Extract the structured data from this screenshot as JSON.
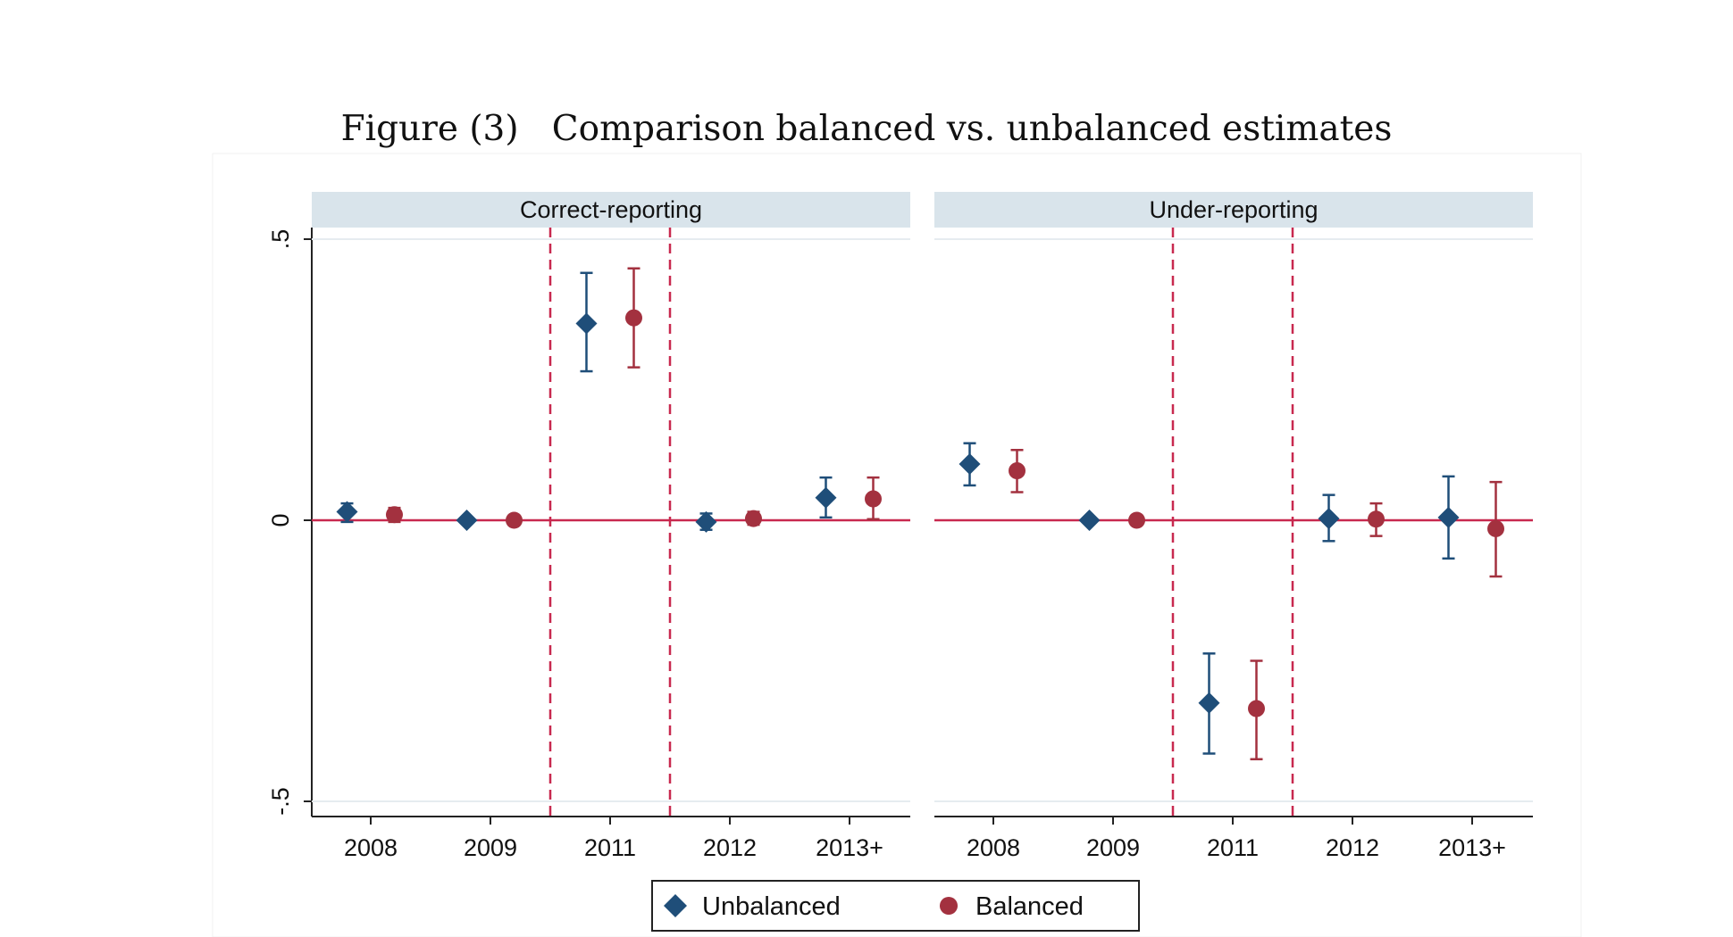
{
  "caption": "Figure (3)   Comparison balanced vs. unbalanced estimates",
  "chart_data": {
    "type": "scatter",
    "subtype": "coefficient plot with confidence intervals, two panels",
    "ylim": [
      -0.5,
      0.5
    ],
    "y_ticks": [
      0.5,
      0,
      -0.5
    ],
    "y_tick_labels": [
      ".5",
      "0",
      "-.5"
    ],
    "grid": "horizontal lines at y ticks",
    "reference_line_y": 0,
    "reference_line_color": "#c8294f",
    "event_lines_between": [
      [
        "2009",
        "2011"
      ],
      [
        "2011",
        "2012"
      ]
    ],
    "event_line_style": "dashed",
    "categories": [
      "2008",
      "2009",
      "2011",
      "2012",
      "2013+"
    ],
    "legend_position": "bottom",
    "legend": [
      {
        "name": "Unbalanced",
        "marker": "diamond",
        "color": "#1f4e79"
      },
      {
        "name": "Balanced",
        "marker": "circle",
        "color": "#a3313f"
      }
    ],
    "panels": [
      {
        "title": "Correct-reporting",
        "series": [
          {
            "name": "Unbalanced",
            "values": [
              0.015,
              0.0,
              0.35,
              -0.003,
              0.04
            ],
            "ci_low": [
              -0.003,
              0.0,
              0.265,
              -0.017,
              0.005
            ],
            "ci_high": [
              0.03,
              0.0,
              0.44,
              0.012,
              0.076
            ]
          },
          {
            "name": "Balanced",
            "values": [
              0.01,
              0.0,
              0.36,
              0.003,
              0.038
            ],
            "ci_low": [
              -0.003,
              0.0,
              0.272,
              -0.008,
              0.002
            ],
            "ci_high": [
              0.022,
              0.0,
              0.448,
              0.015,
              0.076
            ]
          }
        ]
      },
      {
        "title": "Under-reporting",
        "series": [
          {
            "name": "Unbalanced",
            "values": [
              0.1,
              0.0,
              -0.325,
              0.003,
              0.005
            ],
            "ci_low": [
              0.062,
              0.0,
              -0.415,
              -0.037,
              -0.068
            ],
            "ci_high": [
              0.137,
              0.0,
              -0.237,
              0.045,
              0.078
            ]
          },
          {
            "name": "Balanced",
            "values": [
              0.088,
              0.0,
              -0.335,
              0.002,
              -0.015
            ],
            "ci_low": [
              0.05,
              0.0,
              -0.425,
              -0.028,
              -0.1
            ],
            "ci_high": [
              0.125,
              0.0,
              -0.25,
              0.03,
              0.068
            ]
          }
        ]
      }
    ]
  }
}
